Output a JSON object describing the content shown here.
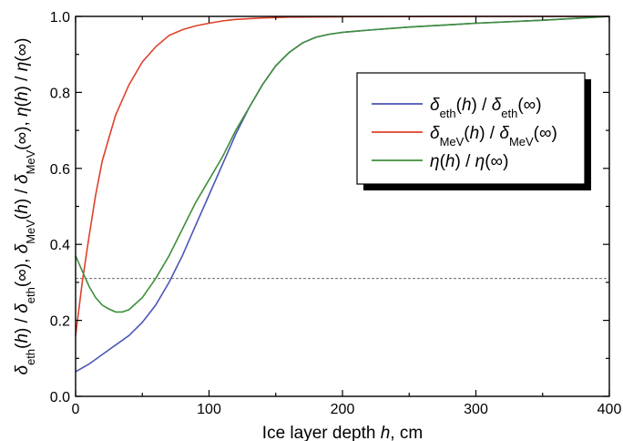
{
  "chart_data": {
    "type": "line",
    "xlabel_parts": [
      {
        "t": "Ice layer depth ",
        "s": "n"
      },
      {
        "t": "h",
        "s": "i"
      },
      {
        "t": ", cm",
        "s": "n"
      }
    ],
    "ylabel_parts": [
      {
        "t": "δ",
        "s": "i"
      },
      {
        "t": "eth",
        "s": "sub"
      },
      {
        "t": "(",
        "s": "n"
      },
      {
        "t": "h",
        "s": "i"
      },
      {
        "t": ") / ",
        "s": "n"
      },
      {
        "t": "δ",
        "s": "i"
      },
      {
        "t": "eth",
        "s": "sub"
      },
      {
        "t": "(∞),   ",
        "s": "n"
      },
      {
        "t": "δ",
        "s": "i"
      },
      {
        "t": "MeV",
        "s": "sub"
      },
      {
        "t": "(",
        "s": "n"
      },
      {
        "t": "h",
        "s": "i"
      },
      {
        "t": ") / ",
        "s": "n"
      },
      {
        "t": "δ",
        "s": "i"
      },
      {
        "t": "MeV",
        "s": "sub"
      },
      {
        "t": "(∞),   ",
        "s": "n"
      },
      {
        "t": "η",
        "s": "i"
      },
      {
        "t": "(",
        "s": "n"
      },
      {
        "t": "h",
        "s": "i"
      },
      {
        "t": ") / ",
        "s": "n"
      },
      {
        "t": "η",
        "s": "i"
      },
      {
        "t": "(∞)",
        "s": "n"
      }
    ],
    "xlim": [
      0,
      400
    ],
    "ylim": [
      0,
      1.0
    ],
    "xticks": [
      0,
      100,
      200,
      300,
      400
    ],
    "yticks": [
      0.0,
      0.2,
      0.4,
      0.6,
      0.8,
      1.0
    ],
    "xtick_labels": [
      "0",
      "100",
      "200",
      "300",
      "400"
    ],
    "ytick_labels": [
      "0.0",
      "0.2",
      "0.4",
      "0.6",
      "0.8",
      "1.0"
    ],
    "grid": false,
    "legend_position": "top-right",
    "reference_line": {
      "y": 0.31,
      "style": "dotted"
    },
    "series": [
      {
        "key": "eth",
        "label_parts": [
          {
            "t": "δ",
            "s": "i"
          },
          {
            "t": "eth",
            "s": "sub"
          },
          {
            "t": "(",
            "s": "n"
          },
          {
            "t": "h",
            "s": "i"
          },
          {
            "t": ") / ",
            "s": "n"
          },
          {
            "t": "δ",
            "s": "i"
          },
          {
            "t": "eth",
            "s": "sub"
          },
          {
            "t": "(∞)",
            "s": "n"
          }
        ],
        "color": "#4a56b5",
        "points": [
          [
            0,
            0.065
          ],
          [
            10,
            0.085
          ],
          [
            20,
            0.11
          ],
          [
            30,
            0.135
          ],
          [
            40,
            0.16
          ],
          [
            50,
            0.195
          ],
          [
            60,
            0.24
          ],
          [
            70,
            0.3
          ],
          [
            80,
            0.37
          ],
          [
            90,
            0.45
          ],
          [
            100,
            0.53
          ],
          [
            110,
            0.61
          ],
          [
            120,
            0.69
          ],
          [
            130,
            0.76
          ],
          [
            140,
            0.82
          ],
          [
            150,
            0.87
          ],
          [
            160,
            0.905
          ],
          [
            170,
            0.93
          ],
          [
            180,
            0.945
          ],
          [
            190,
            0.953
          ],
          [
            200,
            0.958
          ],
          [
            220,
            0.964
          ],
          [
            250,
            0.972
          ],
          [
            300,
            0.982
          ],
          [
            350,
            0.99
          ],
          [
            400,
            1.0
          ]
        ]
      },
      {
        "key": "mev",
        "label_parts": [
          {
            "t": "δ",
            "s": "i"
          },
          {
            "t": "MeV",
            "s": "sub"
          },
          {
            "t": "(",
            "s": "n"
          },
          {
            "t": "h",
            "s": "i"
          },
          {
            "t": ") / ",
            "s": "n"
          },
          {
            "t": "δ",
            "s": "i"
          },
          {
            "t": "MeV",
            "s": "sub"
          },
          {
            "t": "(∞)",
            "s": "n"
          }
        ],
        "color": "#e0402a",
        "points": [
          [
            0,
            0.16
          ],
          [
            5,
            0.3
          ],
          [
            10,
            0.42
          ],
          [
            15,
            0.53
          ],
          [
            20,
            0.62
          ],
          [
            30,
            0.74
          ],
          [
            40,
            0.82
          ],
          [
            50,
            0.88
          ],
          [
            60,
            0.92
          ],
          [
            70,
            0.95
          ],
          [
            80,
            0.965
          ],
          [
            90,
            0.975
          ],
          [
            100,
            0.982
          ],
          [
            110,
            0.988
          ],
          [
            120,
            0.992
          ],
          [
            140,
            0.996
          ],
          [
            160,
            0.998
          ],
          [
            200,
            0.999
          ],
          [
            300,
            1.0
          ],
          [
            400,
            1.0
          ]
        ]
      },
      {
        "key": "eta",
        "label_parts": [
          {
            "t": "η",
            "s": "i"
          },
          {
            "t": "(",
            "s": "n"
          },
          {
            "t": "h",
            "s": "i"
          },
          {
            "t": ") / ",
            "s": "n"
          },
          {
            "t": "η",
            "s": "i"
          },
          {
            "t": "(∞)",
            "s": "n"
          }
        ],
        "color": "#3f8f3a",
        "points": [
          [
            0,
            0.37
          ],
          [
            5,
            0.33
          ],
          [
            10,
            0.29
          ],
          [
            15,
            0.26
          ],
          [
            20,
            0.24
          ],
          [
            25,
            0.23
          ],
          [
            30,
            0.222
          ],
          [
            35,
            0.222
          ],
          [
            40,
            0.228
          ],
          [
            50,
            0.26
          ],
          [
            60,
            0.31
          ],
          [
            70,
            0.37
          ],
          [
            80,
            0.44
          ],
          [
            90,
            0.51
          ],
          [
            100,
            0.57
          ],
          [
            110,
            0.63
          ],
          [
            120,
            0.7
          ],
          [
            130,
            0.76
          ],
          [
            140,
            0.82
          ],
          [
            150,
            0.87
          ],
          [
            160,
            0.905
          ],
          [
            170,
            0.93
          ],
          [
            180,
            0.945
          ],
          [
            190,
            0.953
          ],
          [
            200,
            0.958
          ],
          [
            220,
            0.964
          ],
          [
            250,
            0.972
          ],
          [
            300,
            0.982
          ],
          [
            350,
            0.99
          ],
          [
            400,
            1.0
          ]
        ]
      }
    ]
  }
}
